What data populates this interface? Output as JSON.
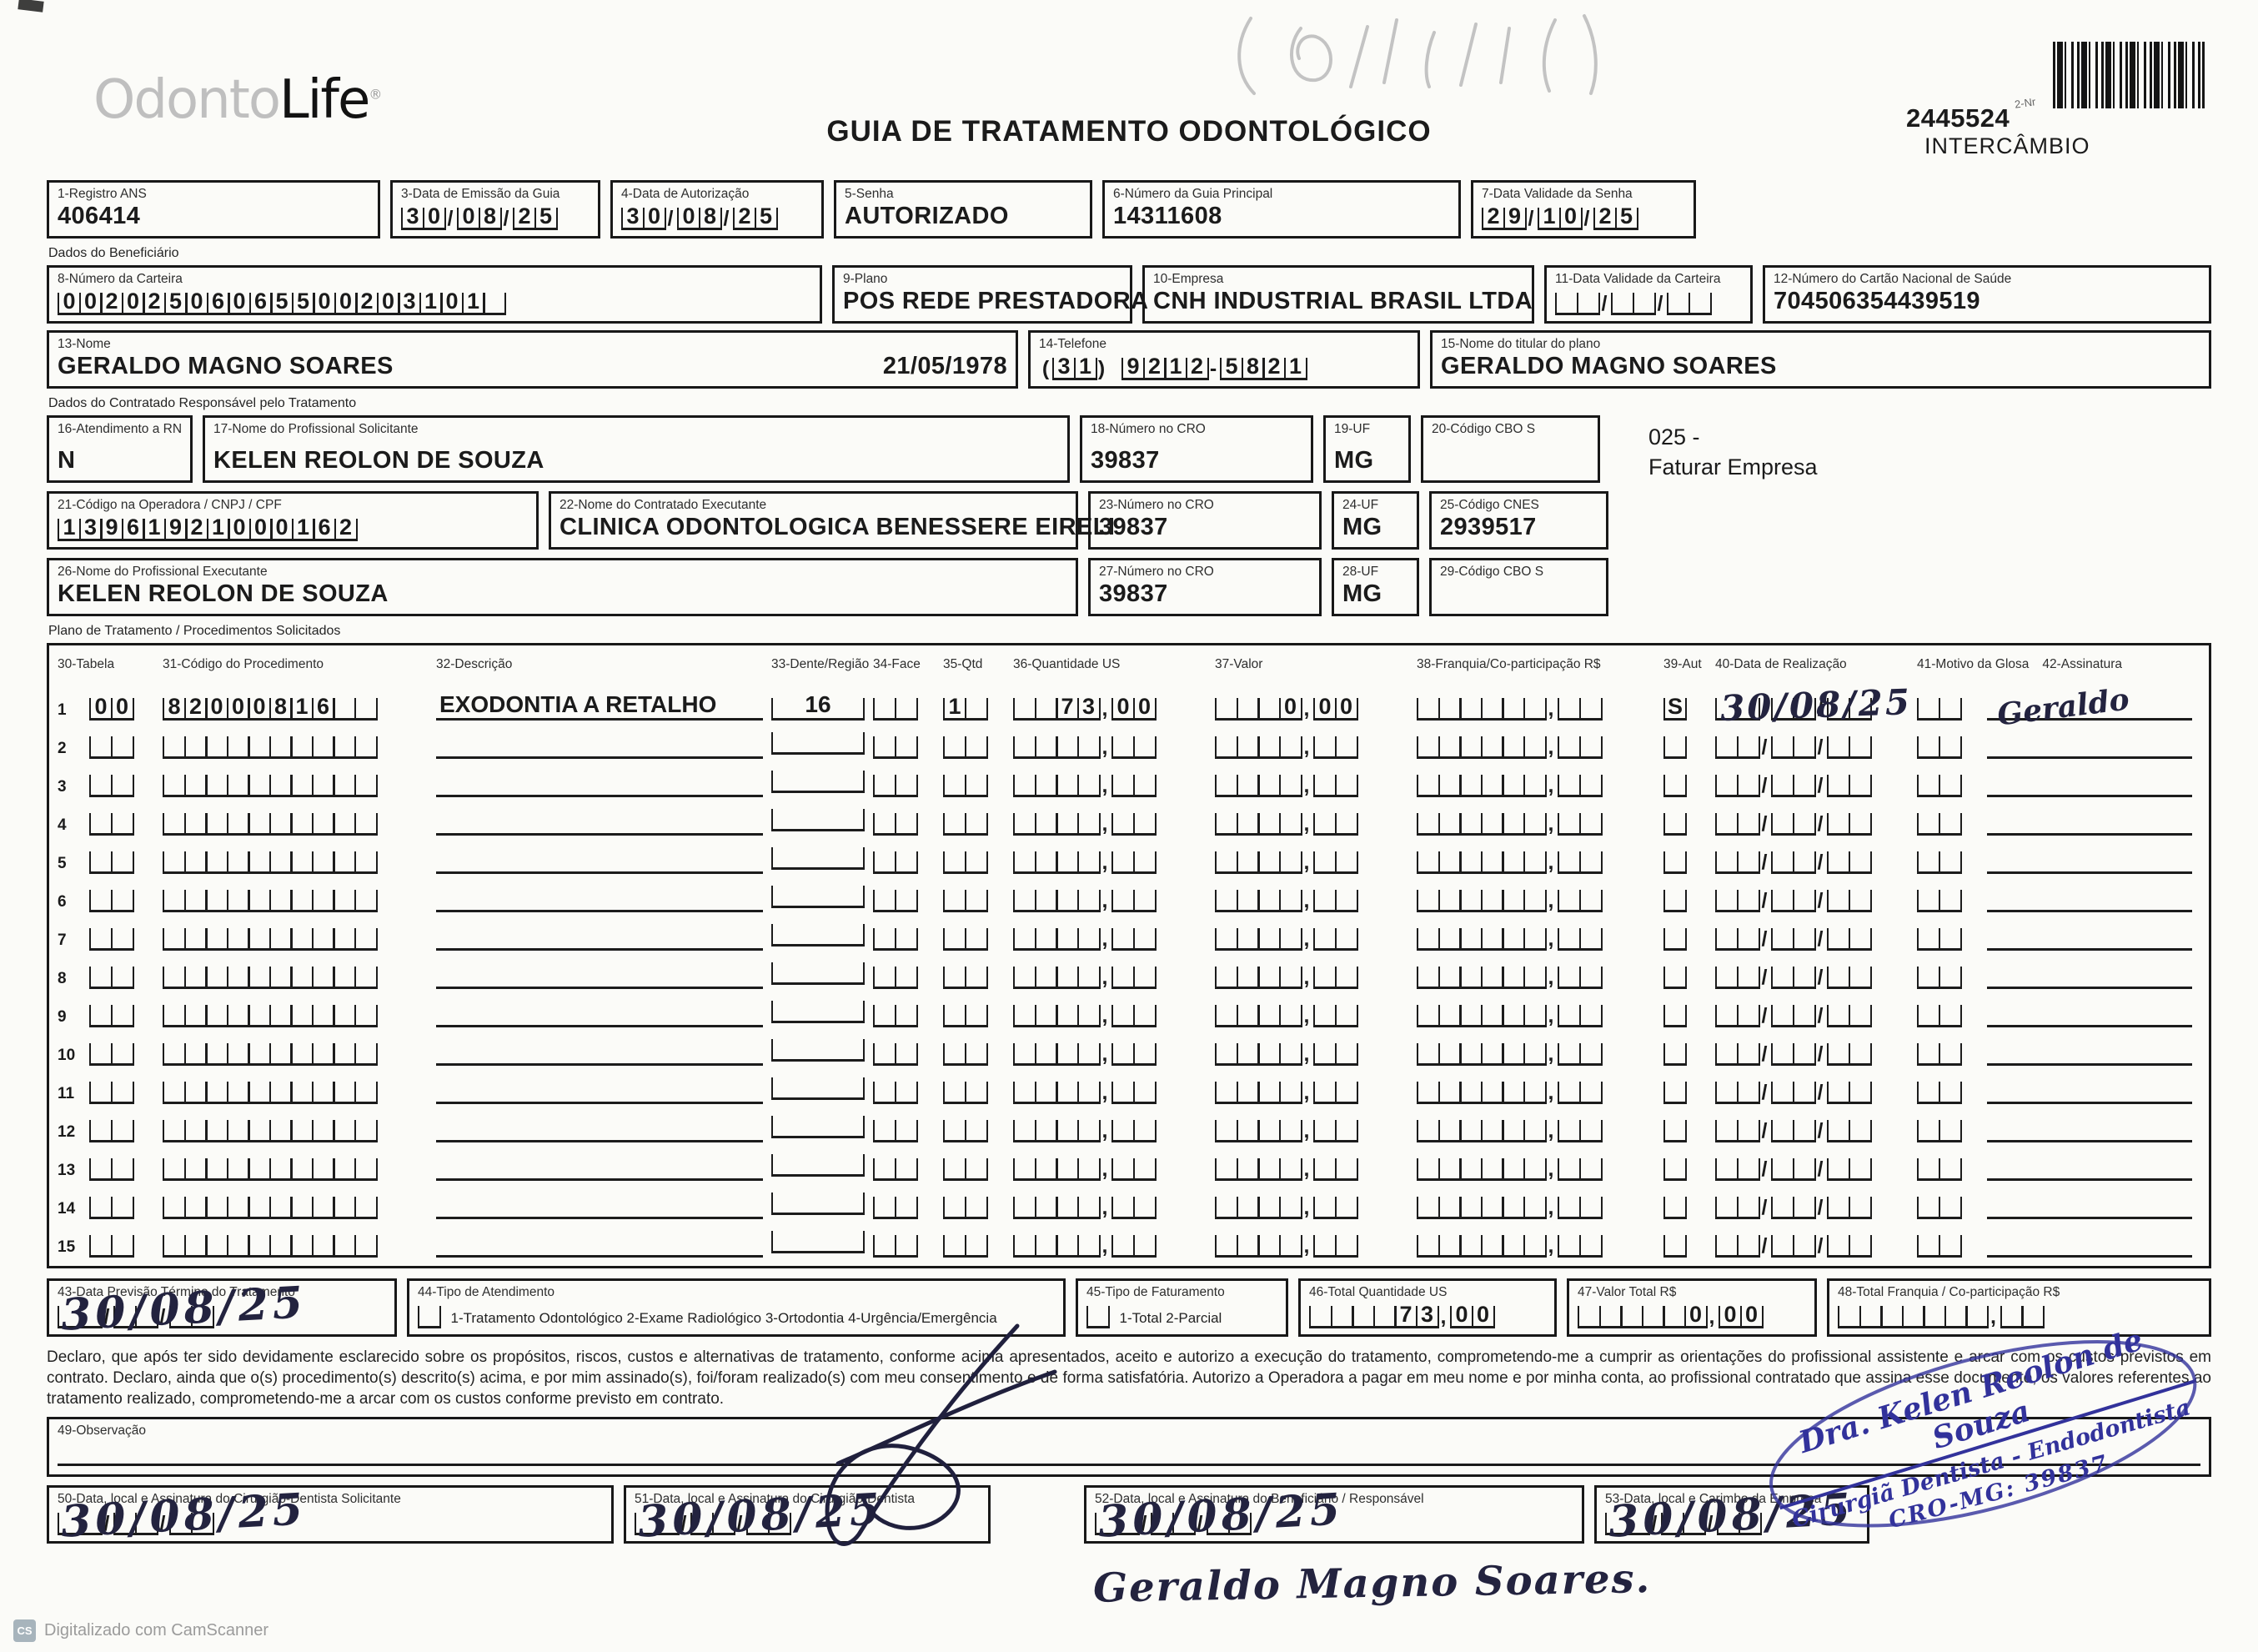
{
  "page": {
    "logo_part1": "Odonto",
    "logo_part2": "Life",
    "logo_registered": "®",
    "title": "GUIA DE TRATAMENTO ODONTOLÓGICO",
    "barcode_small_label": "2-Nr",
    "guide_number": "2445524",
    "guide_number_sub": "INTERCÂMBIO",
    "footer_badge": "CS",
    "footer_text": "Digitalizado com CamScanner"
  },
  "header_fields": {
    "registro_ans": {
      "label": "1-Registro ANS",
      "value": "406414"
    },
    "data_emissao": {
      "label": "3-Data de Emissão da Guia",
      "value": "30/08/25"
    },
    "data_autorizacao": {
      "label": "4-Data de Autorização",
      "value": "30/08/25"
    },
    "senha": {
      "label": "5-Senha",
      "value": "AUTORIZADO"
    },
    "numero_guia_principal": {
      "label": "6-Número da Guia Principal",
      "value": "14311608"
    },
    "data_validade_senha": {
      "label": "7-Data Validade da Senha",
      "value": "29/10/25"
    }
  },
  "beneficiario": {
    "section_label": "Dados do Beneficiário",
    "numero_carteira": {
      "label": "8-Número da Carteira",
      "value": "00202506065500203101"
    },
    "plano": {
      "label": "9-Plano",
      "value": "POS REDE PRESTADORA"
    },
    "empresa": {
      "label": "10-Empresa",
      "value": "CNH INDUSTRIAL BRASIL LTDA"
    },
    "data_validade_carteira": {
      "label": "11-Data Validade da Carteira",
      "value": ""
    },
    "cartao_nacional_saude": {
      "label": "12-Número do Cartão Nacional de Saúde",
      "value": "704506354439519"
    },
    "nome": {
      "label": "13-Nome",
      "value": "GERALDO MAGNO SOARES",
      "nascimento": "21/05/1978"
    },
    "telefone": {
      "label": "14-Telefone",
      "value": "(31) 9212-5821"
    },
    "titular": {
      "label": "15-Nome do titular do plano",
      "value": "GERALDO MAGNO SOARES"
    }
  },
  "contratado": {
    "section_label": "Dados do Contratado Responsável pelo Tratamento",
    "atendimento_rn": {
      "label": "16-Atendimento a RN",
      "value": "N"
    },
    "profissional_solicitante": {
      "label": "17-Nome do Profissional Solicitante",
      "value": "KELEN REOLON DE SOUZA"
    },
    "cro_solicitante": {
      "label": "18-Número no CRO",
      "value": "39837"
    },
    "uf_solicitante": {
      "label": "19-UF",
      "value": "MG"
    },
    "cbo_solicitante": {
      "label": "20-Código CBO S",
      "value": ""
    },
    "nota_linha1": "025 -",
    "nota_linha2": "Faturar Empresa",
    "codigo_operadora": {
      "label": "21-Código na Operadora / CNPJ / CPF",
      "value": "13961921000162"
    },
    "contratado_executante": {
      "label": "22-Nome do Contratado Executante",
      "value": "CLINICA ODONTOLOGICA BENESSERE EIRELI"
    },
    "cro_contratado": {
      "label": "23-Número no CRO",
      "value": "39837"
    },
    "uf_contratado": {
      "label": "24-UF",
      "value": "MG"
    },
    "cnes": {
      "label": "25-Código CNES",
      "value": "2939517"
    },
    "profissional_executante": {
      "label": "26-Nome do Profissional Executante",
      "value": "KELEN REOLON DE SOUZA"
    },
    "cro_executante": {
      "label": "27-Número no CRO",
      "value": "39837"
    },
    "uf_executante": {
      "label": "28-UF",
      "value": "MG"
    },
    "cbo_executante": {
      "label": "29-Código CBO S",
      "value": ""
    }
  },
  "tratamento": {
    "section_label": "Plano de Tratamento / Procedimentos Solicitados",
    "columns": {
      "c30": "30-Tabela",
      "c31": "31-Código do Procedimento",
      "c32": "32-Descrição",
      "c33": "33-Dente/Região",
      "c34": "34-Face",
      "c35": "35-Qtd",
      "c36": "36-Quantidade US",
      "c37": "37-Valor",
      "c38": "38-Franquia/Co-participação R$",
      "c39": "39-Aut",
      "c40": "40-Data de Realização",
      "c41": "41-Motivo da Glosa",
      "c42": "42-Assinatura"
    },
    "rows": [
      {
        "tabela": "00",
        "codigo": "82000816",
        "descricao": "EXODONTIA A RETALHO",
        "dente": "16",
        "face": "",
        "qtd": "1",
        "quantidade_us": "73,00",
        "valor": "0,00",
        "franquia": "",
        "aut": "S",
        "data_realizacao": "30/08/25",
        "motivo": "",
        "assinatura": "Geraldo"
      },
      {},
      {},
      {},
      {},
      {},
      {},
      {},
      {},
      {},
      {},
      {},
      {},
      {},
      {}
    ]
  },
  "rodape": {
    "data_previsao": {
      "label": "43-Data Previsão Término do Tratamento",
      "comb": "",
      "value": "30/08/25"
    },
    "tipo_atendimento": {
      "label": "44-Tipo de Atendimento",
      "comb": "",
      "options": "1-Tratamento Odontológico   2-Exame Radiológico   3-Ortodontia   4-Urgência/Emergência"
    },
    "tipo_faturamento": {
      "label": "45-Tipo de Faturamento",
      "comb": "",
      "options": "1-Total   2-Parcial"
    },
    "total_us": {
      "label": "46-Total Quantidade US",
      "value": "73,00"
    },
    "valor_total": {
      "label": "47-Valor Total R$",
      "value": "0,00"
    },
    "total_franquia": {
      "label": "48-Total Franquia / Co-participação R$",
      "value": ""
    }
  },
  "declaracao": "Declaro, que após ter sido devidamente esclarecido sobre os propósitos, riscos, custos e alternativas de tratamento, conforme acima apresentados, aceito e autorizo a execução do tratamento, comprometendo-me a cumprir as orientações do profissional assistente e arcar com os custos previstos em contrato. Declaro, ainda que o(s) procedimento(s) descrito(s) acima, e por mim assinado(s), foi/foram realizado(s) com meu consentimento e de forma satisfatória. Autorizo a Operadora a pagar em meu nome e por minha conta, ao profissional contratado que assina esse documento, os valores referentes ao tratamento realizado, comprometendo-me a arcar com os custos conforme previsto em contrato.",
  "observacao": {
    "label": "49-Observação",
    "value": ""
  },
  "assinaturas": {
    "solicitante": {
      "label": "50-Data, local e Assinatura do Cirurgião-Dentista Solicitante",
      "comb": "",
      "value": "30/08/25"
    },
    "dentista": {
      "label": "51-Data, local e Assinatura do Cirurgião-Dentista",
      "comb": "",
      "value": "30/08/25"
    },
    "beneficiario": {
      "label": "52-Data, local e Assinatura do Beneficiário / Responsável",
      "comb": "",
      "value": "30/08/25",
      "nome_manuscrito": "Geraldo Magno Soares."
    },
    "empresa": {
      "label": "53-Data, local e Carimbo da Empresa",
      "comb": "",
      "value": "30/08/25"
    },
    "carimbo": {
      "linha1": "Dra. Kelen Reolon de Souza",
      "linha2": "Cirurgiã Dentista - Endodontista",
      "linha3": "CRO-MG: 39837"
    }
  }
}
